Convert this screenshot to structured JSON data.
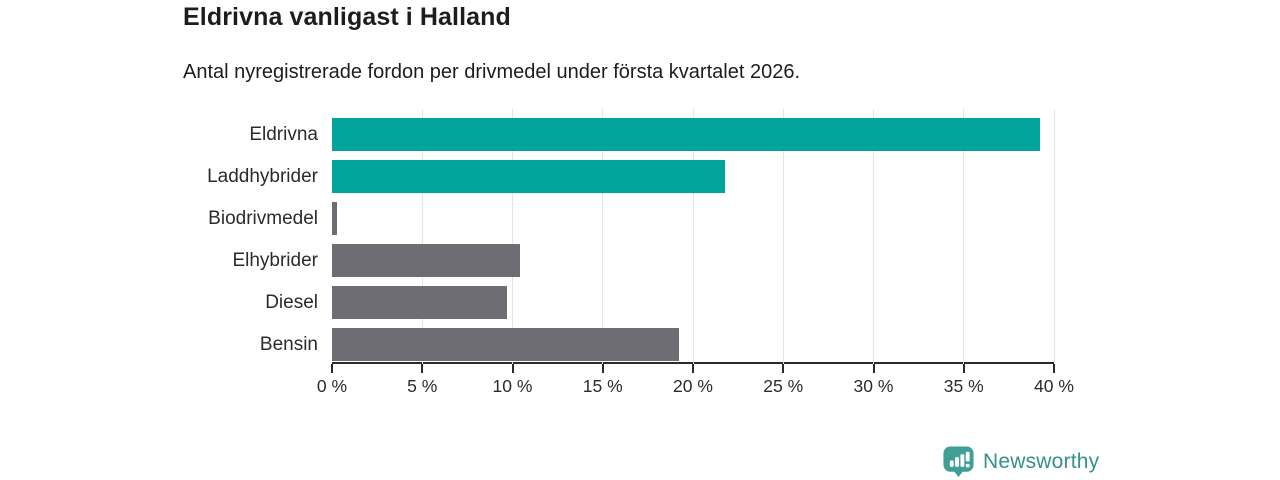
{
  "chart_data": {
    "type": "bar",
    "orientation": "horizontal",
    "title": "Eldrivna vanligast i Halland",
    "subtitle": "Antal nyregistrerade fordon per drivmedel under första kvartalet 2026.",
    "unit": "%",
    "categories": [
      "Eldrivna",
      "Laddhybrider",
      "Biodrivmedel",
      "Elhybrider",
      "Diesel",
      "Bensin"
    ],
    "values": [
      39.2,
      21.8,
      0.3,
      10.4,
      9.7,
      19.2
    ],
    "bar_colors": [
      "#00a49a",
      "#00a49a",
      "#6e6d74",
      "#6e6d74",
      "#6e6d74",
      "#6e6d74"
    ],
    "xlim": [
      0,
      40
    ],
    "x_ticks": [
      0,
      5,
      10,
      15,
      20,
      25,
      30,
      35,
      40
    ],
    "x_tick_labels": [
      "0 %",
      "5 %",
      "10 %",
      "15 %",
      "20 %",
      "25 %",
      "30 %",
      "35 %",
      "40 %"
    ],
    "xlabel": "",
    "ylabel": "",
    "grid": "vertical",
    "legend_position": "none"
  },
  "styles": {
    "highlight_color": "#00a49a",
    "muted_color": "#6e6d74",
    "axis_color": "#2b2b2b",
    "gridline_color": "#e4e4e4",
    "text_color": "#1d1d1d",
    "secondary_text_color": "#2b2b2b",
    "brand_color": "#35918a",
    "brand_icon_color": "#3f9e96"
  },
  "footer": {
    "brand": "Newsworthy",
    "logo_icon": "bar-chart-speech-bubble-icon"
  }
}
